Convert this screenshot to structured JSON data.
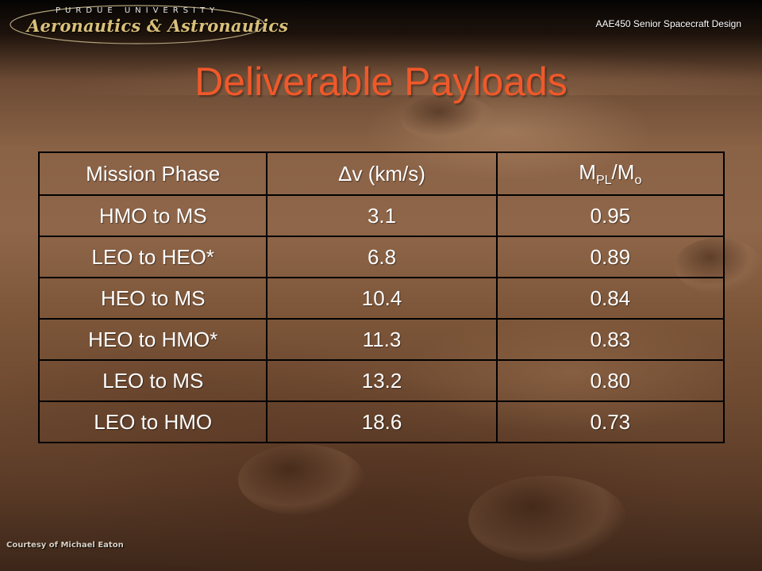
{
  "header": {
    "logo_top": "PURDUE UNIVERSITY",
    "logo_main": "Aeronautics & Astronautics",
    "course": "AAE450 Senior Spacecraft Design"
  },
  "title": "Deliverable Payloads",
  "table": {
    "header": {
      "mission_phase": "Mission Phase",
      "delta_v": "Δv (km/s)",
      "mass_ratio_main": "M",
      "mass_ratio_sub1": "PL",
      "mass_ratio_slash": "/M",
      "mass_ratio_sub2": "o"
    },
    "rows": [
      {
        "phase": "HMO to MS",
        "dv": "3.1",
        "ratio": "0.95"
      },
      {
        "phase": "LEO to HEO*",
        "dv": "6.8",
        "ratio": "0.89"
      },
      {
        "phase": "HEO to MS",
        "dv": "10.4",
        "ratio": "0.84"
      },
      {
        "phase": "HEO to HMO*",
        "dv": "11.3",
        "ratio": "0.83"
      },
      {
        "phase": "LEO to MS",
        "dv": "13.2",
        "ratio": "0.80"
      },
      {
        "phase": "LEO to HMO",
        "dv": "18.6",
        "ratio": "0.73"
      }
    ]
  },
  "credit": "Courtesy of Michael Eaton",
  "colors": {
    "title": "#f0582a",
    "table_text": "#ffffff",
    "grid": "#000000",
    "logo_gold": "#d9c07a"
  }
}
